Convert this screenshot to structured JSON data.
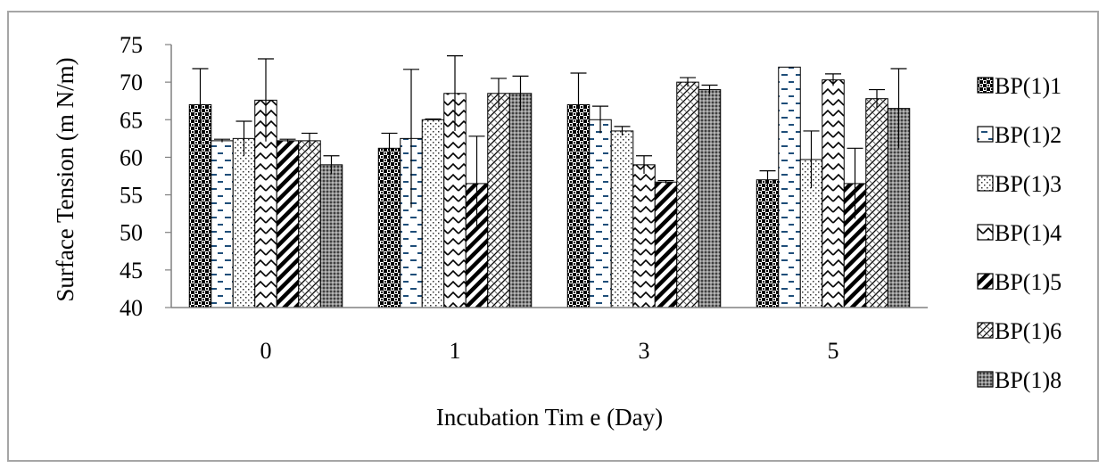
{
  "chart_data": {
    "type": "bar",
    "title": "",
    "xlabel": "Incubation Tim e (Day)",
    "ylabel": "Surface Tension (m N/m)",
    "ylim": [
      40,
      75
    ],
    "yticks": [
      "40",
      "45",
      "50",
      "55",
      "60",
      "65",
      "70",
      "75"
    ],
    "categories": [
      "0",
      "1",
      "3",
      "5"
    ],
    "grid": false,
    "legend_position": "right",
    "series": [
      {
        "name": "BP(1)1",
        "pattern": "checker",
        "values": [
          67.0,
          61.2,
          67.0,
          57.0
        ],
        "errors": [
          4.8,
          2.0,
          4.2,
          1.2
        ]
      },
      {
        "name": "BP(1)2",
        "pattern": "dash",
        "values": [
          62.2,
          62.5,
          65.0,
          72.0
        ],
        "errors": [
          0.2,
          9.2,
          1.8,
          0.0
        ]
      },
      {
        "name": "BP(1)3",
        "pattern": "dots",
        "values": [
          62.5,
          65.0,
          63.5,
          59.7
        ],
        "errors": [
          2.3,
          0.1,
          0.6,
          3.8
        ]
      },
      {
        "name": "BP(1)4",
        "pattern": "zigzag",
        "values": [
          67.6,
          68.5,
          59.0,
          70.3
        ],
        "errors": [
          5.5,
          5.0,
          1.2,
          0.8
        ]
      },
      {
        "name": "BP(1)5",
        "pattern": "diagonal",
        "values": [
          62.2,
          56.5,
          56.7,
          56.5
        ],
        "errors": [
          0.2,
          6.3,
          0.2,
          4.7
        ]
      },
      {
        "name": "BP(1)6",
        "pattern": "crosshatch",
        "values": [
          62.2,
          68.5,
          70.0,
          67.8
        ],
        "errors": [
          1.0,
          2.0,
          0.6,
          1.2
        ]
      },
      {
        "name": "BP(1)8",
        "pattern": "dense",
        "values": [
          59.0,
          68.5,
          69.0,
          66.5
        ],
        "errors": [
          1.2,
          2.3,
          0.6,
          5.3
        ]
      }
    ]
  }
}
